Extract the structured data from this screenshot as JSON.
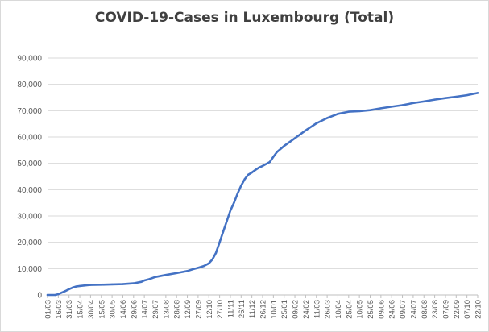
{
  "chart_data": {
    "type": "line",
    "title": "COVID-19-Cases in Luxembourg (Total)",
    "xlabel": "",
    "ylabel": "",
    "ylim": [
      0,
      90000
    ],
    "y_ticks": [
      "0",
      "10,000",
      "20,000",
      "30,000",
      "40,000",
      "50,000",
      "60,000",
      "70,000",
      "80,000",
      "90,000"
    ],
    "x_ticks": [
      "01/03",
      "16/03",
      "31/03",
      "15/04",
      "30/04",
      "15/05",
      "30/05",
      "14/06",
      "29/06",
      "14/07",
      "29/07",
      "13/08",
      "28/08",
      "12/09",
      "27/09",
      "12/10",
      "27/10",
      "11/11",
      "26/11",
      "11/12",
      "26/12",
      "10/01",
      "25/01",
      "09/02",
      "24/02",
      "11/03",
      "26/03",
      "10/04",
      "25/04",
      "10/05",
      "25/05",
      "09/06",
      "24/06",
      "09/07",
      "24/07",
      "08/08",
      "23/08",
      "07/09",
      "22/09",
      "07/10",
      "22/10"
    ],
    "grid": "horizontal",
    "legend": "none",
    "series": [
      {
        "color": "#4472c4",
        "x": [
          "01/03",
          "12/03",
          "16/03",
          "22/03",
          "26/03",
          "31/03",
          "05/04",
          "10/04",
          "15/04",
          "25/04",
          "30/04",
          "15/05",
          "30/05",
          "14/06",
          "29/06",
          "10/07",
          "14/07",
          "21/07",
          "29/07",
          "13/08",
          "28/08",
          "12/09",
          "20/09",
          "27/09",
          "05/10",
          "12/10",
          "17/10",
          "22/10",
          "27/10",
          "01/11",
          "06/11",
          "11/11",
          "16/11",
          "21/11",
          "26/11",
          "01/12",
          "06/12",
          "11/12",
          "16/12",
          "21/12",
          "26/12",
          "05/01",
          "10/01",
          "15/01",
          "25/01",
          "09/02",
          "24/02",
          "11/03",
          "26/03",
          "10/04",
          "25/04",
          "10/05",
          "25/05",
          "09/06",
          "24/06",
          "09/07",
          "24/07",
          "08/08",
          "23/08",
          "07/09",
          "22/09",
          "07/10",
          "22/10"
        ],
        "values": [
          0,
          0,
          300,
          1000,
          1500,
          2200,
          2800,
          3200,
          3400,
          3700,
          3800,
          3900,
          4000,
          4100,
          4400,
          5000,
          5500,
          6000,
          6800,
          7600,
          8300,
          9100,
          9800,
          10300,
          11000,
          12000,
          13500,
          16000,
          20000,
          24000,
          28000,
          32000,
          35000,
          38500,
          41500,
          44000,
          45700,
          46500,
          47500,
          48400,
          49000,
          50500,
          52500,
          54300,
          56600,
          59500,
          62500,
          65200,
          67200,
          68800,
          69600,
          69800,
          70200,
          70900,
          71500,
          72100,
          72900,
          73500,
          74200,
          74800,
          75300,
          75900,
          76700
        ]
      }
    ]
  }
}
